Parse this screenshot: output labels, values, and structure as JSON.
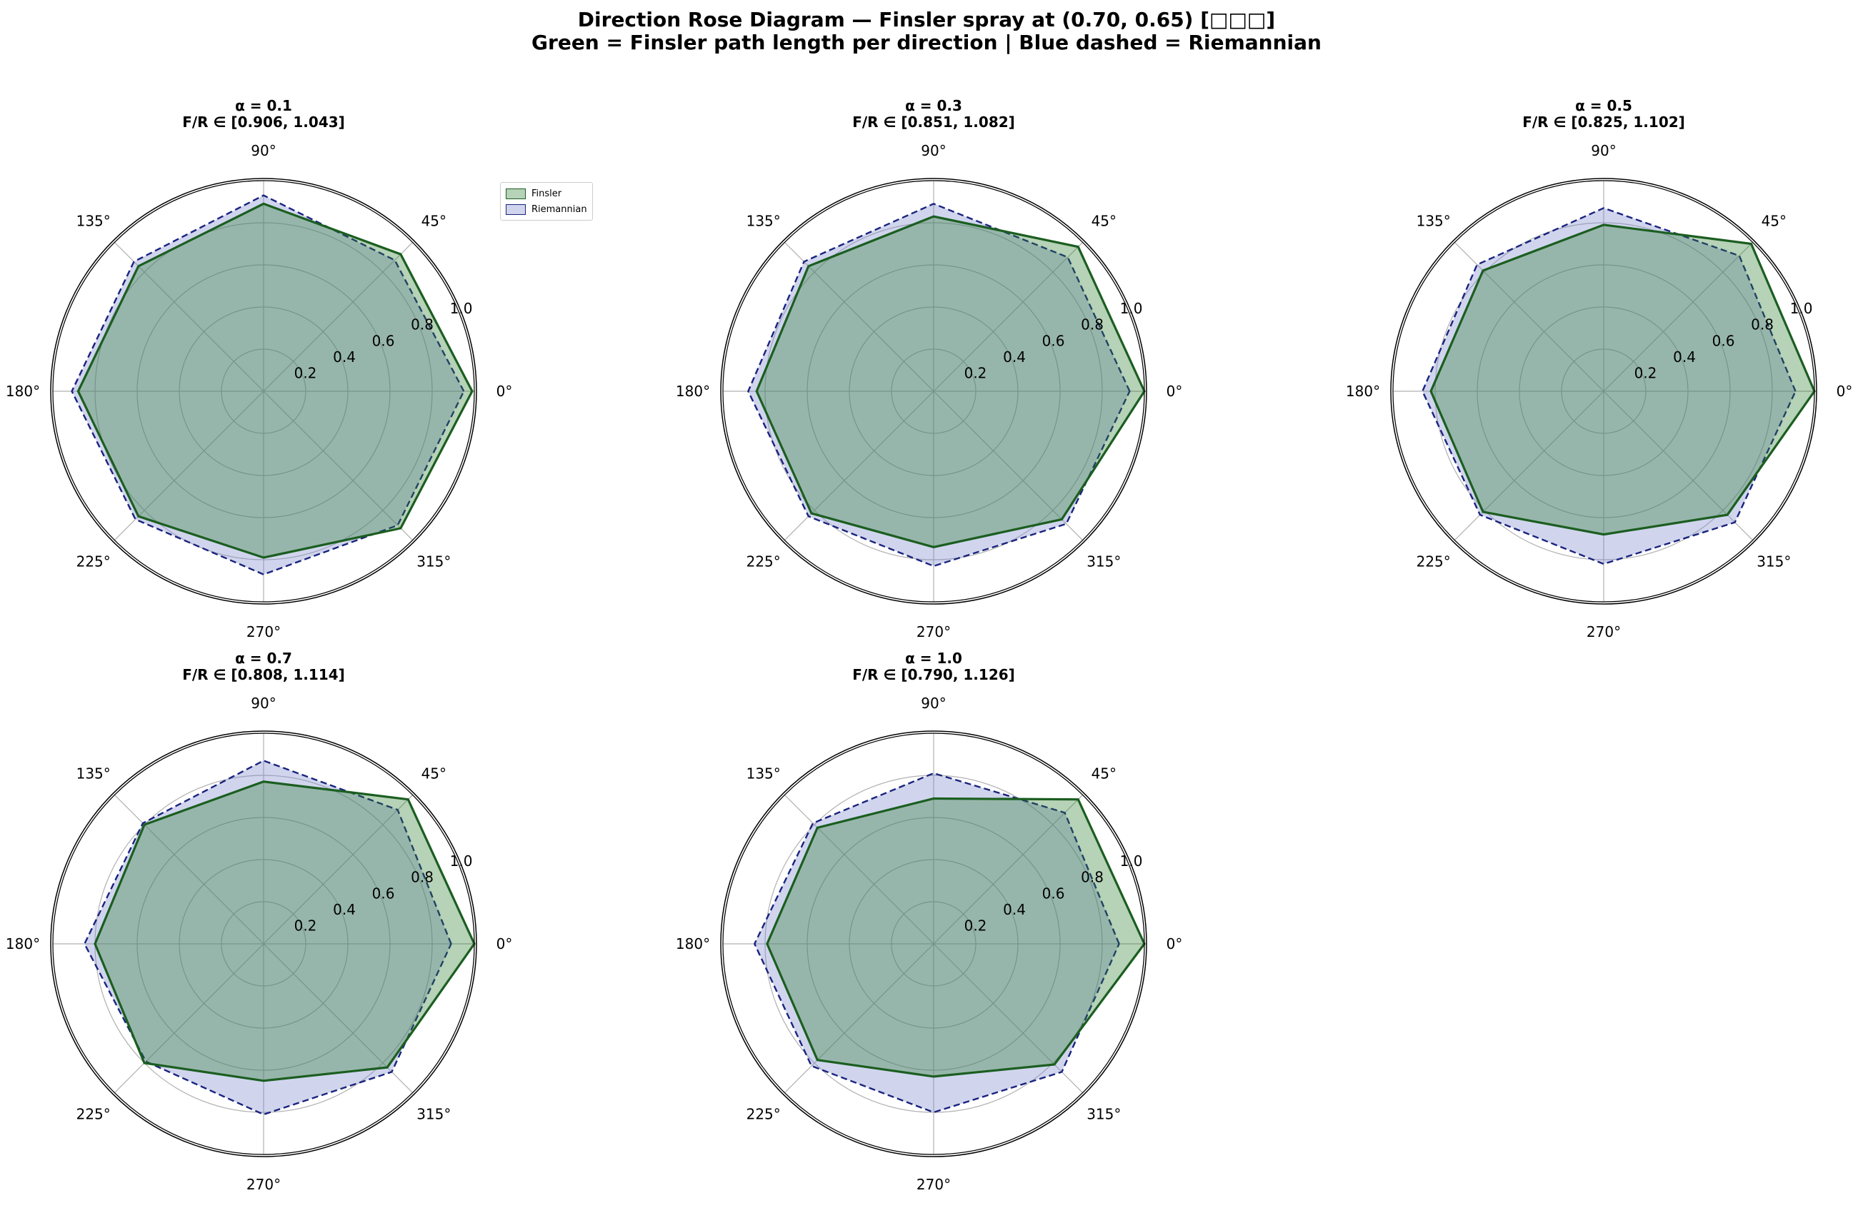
{
  "figure": {
    "title_line1": "Direction Rose Diagram — Finsler spray at (0.70, 0.65) [□□□]",
    "title_line2": "Green = Finsler path length per direction | Blue dashed = Riemannian"
  },
  "colors": {
    "finsler_line": "#1b5e20",
    "finsler_fill": "#2e7d32",
    "riemann_line": "#1a237e",
    "riemann_fill": "#7986cb",
    "grid": "#b0b0b0"
  },
  "chart_data": [
    {
      "type": "polar-area",
      "title": "α = 0.1",
      "subtitle": "F/R ∈ [0.906, 1.043]",
      "theta_ticks": [
        "0°",
        "45°",
        "90°",
        "135°",
        "180°",
        "225°",
        "270°",
        "315°"
      ],
      "r_ticks": [
        "0.2",
        "0.4",
        "0.6",
        "0.8",
        "1.0"
      ],
      "rlim": [
        0,
        1.0
      ],
      "legend": [
        "Finsler",
        "Riemannian"
      ],
      "series": [
        {
          "name": "Finsler",
          "theta_deg": [
            0,
            45,
            90,
            135,
            180,
            225,
            270,
            315
          ],
          "r": [
            0.99,
            0.92,
            0.89,
            0.84,
            0.88,
            0.84,
            0.79,
            0.92
          ]
        },
        {
          "name": "Riemannian",
          "theta_deg": [
            0,
            45,
            90,
            135,
            180,
            225,
            270,
            315
          ],
          "r": [
            0.95,
            0.88,
            0.93,
            0.87,
            0.91,
            0.86,
            0.87,
            0.9
          ]
        }
      ]
    },
    {
      "type": "polar-area",
      "title": "α = 0.3",
      "subtitle": "F/R ∈ [0.851, 1.082]",
      "theta_ticks": [
        "0°",
        "45°",
        "90°",
        "135°",
        "180°",
        "225°",
        "270°",
        "315°"
      ],
      "r_ticks": [
        "0.2",
        "0.4",
        "0.6",
        "0.8",
        "1.0"
      ],
      "rlim": [
        0,
        1.0
      ],
      "series": [
        {
          "name": "Finsler",
          "theta_deg": [
            0,
            45,
            90,
            135,
            180,
            225,
            270,
            315
          ],
          "r": [
            1.0,
            0.97,
            0.83,
            0.84,
            0.84,
            0.82,
            0.74,
            0.86
          ]
        },
        {
          "name": "Riemannian",
          "theta_deg": [
            0,
            45,
            90,
            135,
            180,
            225,
            270,
            315
          ],
          "r": [
            0.93,
            0.9,
            0.89,
            0.87,
            0.88,
            0.84,
            0.83,
            0.89
          ]
        }
      ]
    },
    {
      "type": "polar-area",
      "title": "α = 0.5",
      "subtitle": "F/R ∈ [0.825, 1.102]",
      "theta_ticks": [
        "0°",
        "45°",
        "90°",
        "135°",
        "180°",
        "225°",
        "270°",
        "315°"
      ],
      "r_ticks": [
        "0.2",
        "0.4",
        "0.6",
        "0.8",
        "1.0"
      ],
      "rlim": [
        0,
        1.0
      ],
      "series": [
        {
          "name": "Finsler",
          "theta_deg": [
            0,
            45,
            90,
            135,
            180,
            225,
            270,
            315
          ],
          "r": [
            1.0,
            0.99,
            0.79,
            0.81,
            0.82,
            0.81,
            0.68,
            0.83
          ]
        },
        {
          "name": "Riemannian",
          "theta_deg": [
            0,
            45,
            90,
            135,
            180,
            225,
            270,
            315
          ],
          "r": [
            0.91,
            0.91,
            0.87,
            0.85,
            0.86,
            0.83,
            0.82,
            0.88
          ]
        }
      ]
    },
    {
      "type": "polar-area",
      "title": "α = 0.7",
      "subtitle": "F/R ∈ [0.808, 1.114]",
      "theta_ticks": [
        "0°",
        "45°",
        "90°",
        "135°",
        "180°",
        "225°",
        "270°",
        "315°"
      ],
      "r_ticks": [
        "0.2",
        "0.4",
        "0.6",
        "0.8",
        "1.0"
      ],
      "rlim": [
        0,
        1.0
      ],
      "series": [
        {
          "name": "Finsler",
          "theta_deg": [
            0,
            45,
            90,
            135,
            180,
            225,
            270,
            315
          ],
          "r": [
            1.0,
            0.97,
            0.77,
            0.8,
            0.8,
            0.8,
            0.65,
            0.83
          ]
        },
        {
          "name": "Riemannian",
          "theta_deg": [
            0,
            45,
            90,
            135,
            180,
            225,
            270,
            315
          ],
          "r": [
            0.89,
            0.9,
            0.87,
            0.81,
            0.85,
            0.79,
            0.81,
            0.86
          ]
        }
      ]
    },
    {
      "type": "polar-area",
      "title": "α = 1.0",
      "subtitle": "F/R ∈ [0.790, 1.126]",
      "theta_ticks": [
        "0°",
        "45°",
        "90°",
        "135°",
        "180°",
        "225°",
        "270°",
        "315°"
      ],
      "r_ticks": [
        "0.2",
        "0.4",
        "0.6",
        "0.8",
        "1.0"
      ],
      "rlim": [
        0,
        1.0
      ],
      "series": [
        {
          "name": "Finsler",
          "theta_deg": [
            0,
            45,
            90,
            135,
            180,
            225,
            270,
            315
          ],
          "r": [
            1.0,
            0.97,
            0.69,
            0.78,
            0.79,
            0.78,
            0.63,
            0.81
          ]
        },
        {
          "name": "Riemannian",
          "theta_deg": [
            0,
            45,
            90,
            135,
            180,
            225,
            270,
            315
          ],
          "r": [
            0.88,
            0.88,
            0.81,
            0.81,
            0.85,
            0.82,
            0.8,
            0.86
          ]
        }
      ]
    }
  ]
}
